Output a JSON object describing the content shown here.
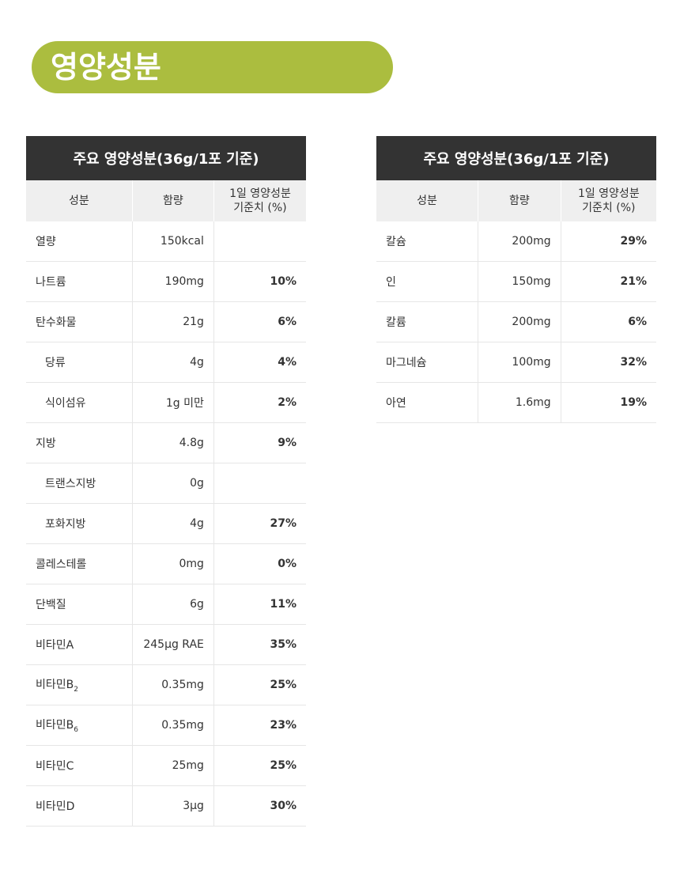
{
  "title": "영양성분",
  "colors": {
    "accent": "#abbd3f",
    "header": "#333333",
    "subheader": "#efefef"
  },
  "tables": [
    {
      "caption": "주요 영양성분(36g/1포 기준)",
      "headers": [
        "성분",
        "함량",
        "1일 영양성분",
        "기준치 (%)"
      ],
      "rows": [
        {
          "name": "열량",
          "sub": "",
          "amount": "150kcal",
          "pct": "",
          "indent": false
        },
        {
          "name": "나트륨",
          "sub": "",
          "amount": "190mg",
          "pct": "10%",
          "indent": false
        },
        {
          "name": "탄수화물",
          "sub": "",
          "amount": "21g",
          "pct": "6%",
          "indent": false
        },
        {
          "name": "당류",
          "sub": "",
          "amount": "4g",
          "pct": "4%",
          "indent": true
        },
        {
          "name": "식이섬유",
          "sub": "",
          "amount": "1g 미만",
          "pct": "2%",
          "indent": true
        },
        {
          "name": "지방",
          "sub": "",
          "amount": "4.8g",
          "pct": "9%",
          "indent": false
        },
        {
          "name": "트랜스지방",
          "sub": "",
          "amount": "0g",
          "pct": "",
          "indent": true
        },
        {
          "name": "포화지방",
          "sub": "",
          "amount": "4g",
          "pct": "27%",
          "indent": true
        },
        {
          "name": "콜레스테롤",
          "sub": "",
          "amount": "0mg",
          "pct": "0%",
          "indent": false
        },
        {
          "name": "단백질",
          "sub": "",
          "amount": "6g",
          "pct": "11%",
          "indent": false
        },
        {
          "name": "비타민A",
          "sub": "",
          "amount": "245μg RAE",
          "pct": "35%",
          "indent": false
        },
        {
          "name": "비타민B",
          "sub": "2",
          "amount": "0.35mg",
          "pct": "25%",
          "indent": false
        },
        {
          "name": "비타민B",
          "sub": "6",
          "amount": "0.35mg",
          "pct": "23%",
          "indent": false
        },
        {
          "name": "비타민C",
          "sub": "",
          "amount": "25mg",
          "pct": "25%",
          "indent": false
        },
        {
          "name": "비타민D",
          "sub": "",
          "amount": "3μg",
          "pct": "30%",
          "indent": false
        }
      ]
    },
    {
      "caption": "주요 영양성분(36g/1포 기준)",
      "headers": [
        "성분",
        "함량",
        "1일 영양성분",
        "기준치 (%)"
      ],
      "rows": [
        {
          "name": "칼슘",
          "sub": "",
          "amount": "200mg",
          "pct": "29%",
          "indent": false
        },
        {
          "name": "인",
          "sub": "",
          "amount": "150mg",
          "pct": "21%",
          "indent": false
        },
        {
          "name": "칼륨",
          "sub": "",
          "amount": "200mg",
          "pct": "6%",
          "indent": false
        },
        {
          "name": "마그네슘",
          "sub": "",
          "amount": "100mg",
          "pct": "32%",
          "indent": false
        },
        {
          "name": "아연",
          "sub": "",
          "amount": "1.6mg",
          "pct": "19%",
          "indent": false
        }
      ]
    }
  ]
}
